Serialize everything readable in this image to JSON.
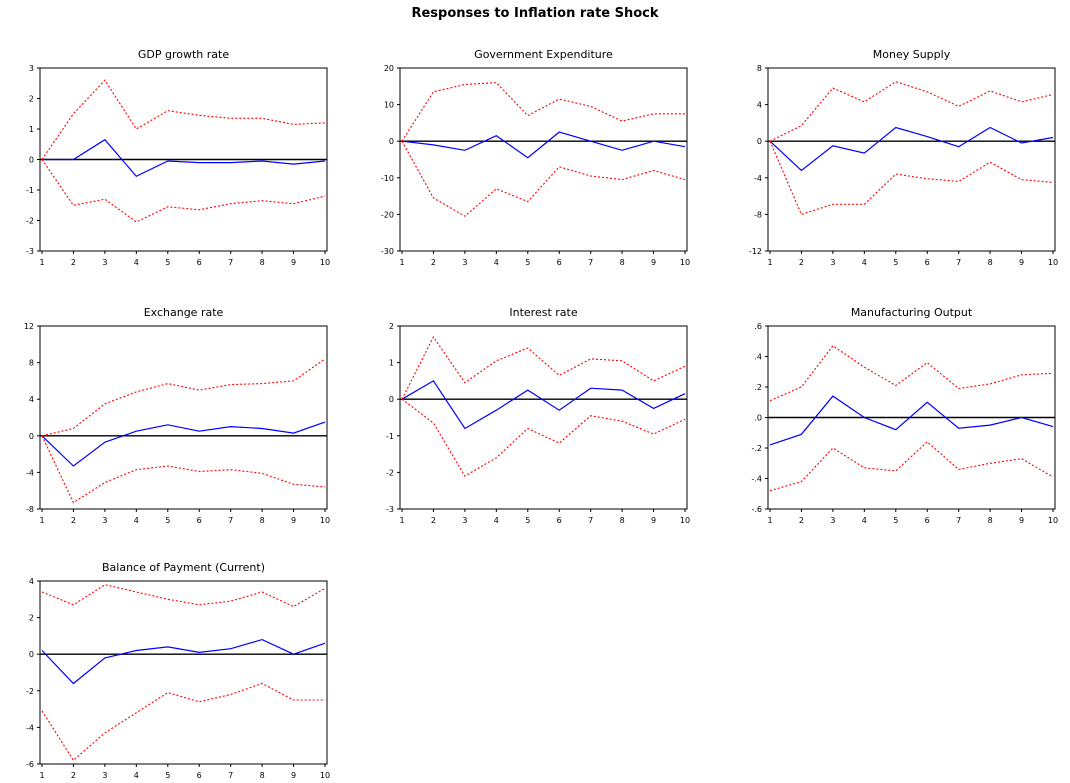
{
  "title": "Responses to Inflation rate Shock",
  "colors": {
    "response": "#0000ff",
    "band": "#ff0000",
    "axis": "#000000"
  },
  "chart_data": [
    {
      "type": "line",
      "title": "GDP growth rate",
      "x": [
        1,
        2,
        3,
        4,
        5,
        6,
        7,
        8,
        9,
        10
      ],
      "x_tick_labels": [
        "1",
        "2",
        "3",
        "4",
        "5",
        "6",
        "7",
        "8",
        "9",
        "10"
      ],
      "ylim": [
        -3,
        3
      ],
      "y_ticks": [
        -3,
        -2,
        -1,
        0,
        1,
        2,
        3
      ],
      "y_tick_labels": [
        "-3",
        "-2",
        "-1",
        "0",
        "1",
        "2",
        "3"
      ],
      "series": [
        {
          "role": "response",
          "values": [
            0,
            0,
            0.65,
            -0.55,
            -0.05,
            -0.1,
            -0.1,
            -0.05,
            -0.15,
            -0.05
          ]
        },
        {
          "role": "upper",
          "values": [
            0,
            1.5,
            2.6,
            1.0,
            1.6,
            1.45,
            1.35,
            1.35,
            1.15,
            1.2
          ]
        },
        {
          "role": "lower",
          "values": [
            0,
            -1.5,
            -1.3,
            -2.05,
            -1.55,
            -1.65,
            -1.45,
            -1.35,
            -1.45,
            -1.2
          ]
        }
      ]
    },
    {
      "type": "line",
      "title": "Government Expenditure",
      "x": [
        1,
        2,
        3,
        4,
        5,
        6,
        7,
        8,
        9,
        10
      ],
      "x_tick_labels": [
        "1",
        "2",
        "3",
        "4",
        "5",
        "6",
        "7",
        "8",
        "9",
        "10"
      ],
      "ylim": [
        -30,
        20
      ],
      "y_ticks": [
        -30,
        -20,
        -10,
        0,
        10,
        20
      ],
      "y_tick_labels": [
        "-30",
        "-20",
        "-10",
        "0",
        "10",
        "20"
      ],
      "series": [
        {
          "role": "response",
          "values": [
            0,
            -1,
            -2.5,
            1.5,
            -4.5,
            2.5,
            0,
            -2.5,
            0,
            -1.5
          ]
        },
        {
          "role": "upper",
          "values": [
            0,
            13.5,
            15.5,
            16,
            7,
            11.5,
            9.5,
            5.5,
            7.5,
            7.5
          ]
        },
        {
          "role": "lower",
          "values": [
            0,
            -15.5,
            -20.5,
            -13,
            -16.5,
            -7,
            -9.5,
            -10.5,
            -8,
            -10.5
          ]
        }
      ]
    },
    {
      "type": "line",
      "title": "Money Supply",
      "x": [
        1,
        2,
        3,
        4,
        5,
        6,
        7,
        8,
        9,
        10
      ],
      "x_tick_labels": [
        "1",
        "2",
        "3",
        "4",
        "5",
        "6",
        "7",
        "8",
        "9",
        "10"
      ],
      "ylim": [
        -12,
        8
      ],
      "y_ticks": [
        -12,
        -8,
        -4,
        0,
        4,
        8
      ],
      "y_tick_labels": [
        "-12",
        "-8",
        "-4",
        "0",
        "4",
        "8"
      ],
      "series": [
        {
          "role": "response",
          "values": [
            0,
            -3.2,
            -0.5,
            -1.3,
            1.5,
            0.5,
            -0.6,
            1.5,
            -0.2,
            0.4
          ]
        },
        {
          "role": "upper",
          "values": [
            0,
            1.7,
            5.8,
            4.3,
            6.5,
            5.4,
            3.8,
            5.5,
            4.3,
            5.1
          ]
        },
        {
          "role": "lower",
          "values": [
            0,
            -8,
            -6.9,
            -6.9,
            -3.6,
            -4.1,
            -4.4,
            -2.3,
            -4.2,
            -4.5
          ]
        }
      ]
    },
    {
      "type": "line",
      "title": "Exchange rate",
      "x": [
        1,
        2,
        3,
        4,
        5,
        6,
        7,
        8,
        9,
        10
      ],
      "x_tick_labels": [
        "1",
        "2",
        "3",
        "4",
        "5",
        "6",
        "7",
        "8",
        "9",
        "10"
      ],
      "ylim": [
        -8,
        12
      ],
      "y_ticks": [
        -8,
        -4,
        0,
        4,
        8,
        12
      ],
      "y_tick_labels": [
        "-8",
        "-4",
        "0",
        "4",
        "8",
        "12"
      ],
      "series": [
        {
          "role": "response",
          "values": [
            0,
            -3.3,
            -0.7,
            0.5,
            1.2,
            0.5,
            1,
            0.8,
            0.3,
            1.5
          ]
        },
        {
          "role": "upper",
          "values": [
            0,
            0.8,
            3.5,
            4.8,
            5.7,
            5,
            5.6,
            5.7,
            6,
            8.4
          ]
        },
        {
          "role": "lower",
          "values": [
            0,
            -7.3,
            -5.1,
            -3.7,
            -3.3,
            -3.9,
            -3.7,
            -4.1,
            -5.3,
            -5.6
          ]
        }
      ]
    },
    {
      "type": "line",
      "title": "Interest rate",
      "x": [
        1,
        2,
        3,
        4,
        5,
        6,
        7,
        8,
        9,
        10
      ],
      "x_tick_labels": [
        "1",
        "2",
        "3",
        "4",
        "5",
        "6",
        "7",
        "8",
        "9",
        "10"
      ],
      "ylim": [
        -3,
        2
      ],
      "y_ticks": [
        -3,
        -2,
        -1,
        0,
        1,
        2
      ],
      "y_tick_labels": [
        "-3",
        "-2",
        "-1",
        "0",
        "1",
        "2"
      ],
      "series": [
        {
          "role": "response",
          "values": [
            0,
            0.5,
            -0.8,
            -0.3,
            0.25,
            -0.3,
            0.3,
            0.25,
            -0.25,
            0.15
          ]
        },
        {
          "role": "upper",
          "values": [
            0,
            1.7,
            0.45,
            1.05,
            1.4,
            0.65,
            1.1,
            1.05,
            0.5,
            0.9
          ]
        },
        {
          "role": "lower",
          "values": [
            0,
            -0.65,
            -2.1,
            -1.6,
            -0.8,
            -1.2,
            -0.45,
            -0.6,
            -0.95,
            -0.55
          ]
        }
      ]
    },
    {
      "type": "line",
      "title": "Manufacturing Output",
      "x": [
        1,
        2,
        3,
        4,
        5,
        6,
        7,
        8,
        9,
        10
      ],
      "x_tick_labels": [
        "1",
        "2",
        "3",
        "4",
        "5",
        "6",
        "7",
        "8",
        "9",
        "10"
      ],
      "ylim": [
        -0.6,
        0.6
      ],
      "y_ticks": [
        -0.6,
        -0.4,
        -0.2,
        0,
        0.2,
        0.4,
        0.6
      ],
      "y_tick_labels": [
        "-.6",
        "-.4",
        "-.2",
        ".0",
        ".2",
        ".4",
        ".6"
      ],
      "series": [
        {
          "role": "response",
          "values": [
            -0.18,
            -0.11,
            0.14,
            0,
            -0.08,
            0.1,
            -0.07,
            -0.05,
            0,
            -0.06
          ]
        },
        {
          "role": "upper",
          "values": [
            0.11,
            0.2,
            0.47,
            0.33,
            0.21,
            0.36,
            0.19,
            0.22,
            0.28,
            0.29
          ]
        },
        {
          "role": "lower",
          "values": [
            -0.48,
            -0.42,
            -0.2,
            -0.33,
            -0.35,
            -0.16,
            -0.34,
            -0.3,
            -0.27,
            -0.39
          ]
        }
      ]
    },
    {
      "type": "line",
      "title": "Balance of Payment (Current)",
      "x": [
        1,
        2,
        3,
        4,
        5,
        6,
        7,
        8,
        9,
        10
      ],
      "x_tick_labels": [
        "1",
        "2",
        "3",
        "4",
        "5",
        "6",
        "7",
        "8",
        "9",
        "10"
      ],
      "ylim": [
        -6,
        4
      ],
      "y_ticks": [
        -6,
        -4,
        -2,
        0,
        2,
        4
      ],
      "y_tick_labels": [
        "-6",
        "-4",
        "-2",
        "0",
        "2",
        "4"
      ],
      "series": [
        {
          "role": "response",
          "values": [
            0.2,
            -1.6,
            -0.2,
            0.2,
            0.4,
            0.1,
            0.3,
            0.8,
            0,
            0.6
          ]
        },
        {
          "role": "upper",
          "values": [
            3.4,
            2.7,
            3.8,
            3.4,
            3,
            2.7,
            2.9,
            3.4,
            2.6,
            3.6
          ]
        },
        {
          "role": "lower",
          "values": [
            -3.1,
            -5.8,
            -4.3,
            -3.2,
            -2.1,
            -2.6,
            -2.2,
            -1.6,
            -2.5,
            -2.5
          ]
        }
      ]
    }
  ]
}
